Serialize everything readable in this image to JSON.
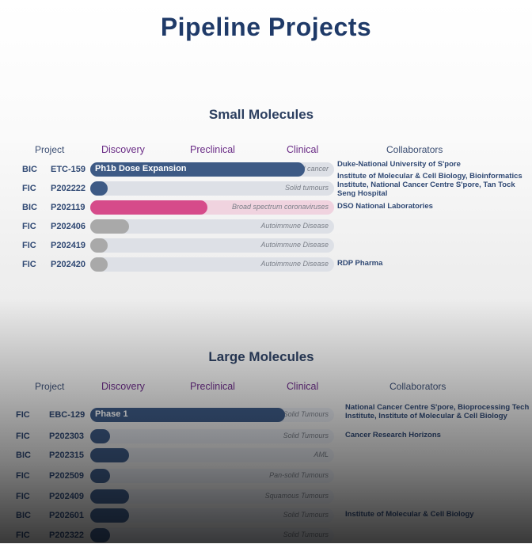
{
  "title": "Pipeline Projects",
  "colors": {
    "navy": "#3d5a85",
    "pink": "#d64b8a",
    "pink_track": "#f0d3df",
    "grey": "#a9a9a9",
    "track": "#dde0e6"
  },
  "sections": [
    {
      "title": "Small Molecules",
      "headers": {
        "project": "Project",
        "discovery": "Discovery",
        "preclinical": "Preclinical",
        "clinical": "Clinical",
        "collaborators": "Collaborators"
      },
      "rows": [
        {
          "type": "BIC",
          "code": "ETC-159",
          "phase": "Ph1b Dose Expansion",
          "indication": "Colorectal, Ovarian, Endometrial cancer",
          "progress": 0.88,
          "color": "navy",
          "collaborators": "Duke-National University of S'pore"
        },
        {
          "type": "FIC",
          "code": "P202222",
          "phase": "",
          "indication": "Solid tumours",
          "progress": 0.07,
          "color": "navy",
          "collaborators": "Institute of Molecular & Cell Biology, Bioinformatics Institute, National Cancer Centre S'pore, Tan Tock Seng Hospital"
        },
        {
          "type": "BIC",
          "code": "P202119",
          "phase": "",
          "indication": "Broad spectrum coronaviruses",
          "progress": 0.48,
          "color": "pink",
          "collaborators": "DSO National Laboratories"
        },
        {
          "type": "FIC",
          "code": "P202406",
          "phase": "",
          "indication": "Autoimmune Disease",
          "progress": 0.16,
          "color": "grey",
          "collaborators": ""
        },
        {
          "type": "FIC",
          "code": "P202419",
          "phase": "",
          "indication": "Autoimmune Disease",
          "progress": 0.07,
          "color": "grey",
          "collaborators": ""
        },
        {
          "type": "FIC",
          "code": "P202420",
          "phase": "",
          "indication": "Autoimmune Disease",
          "progress": 0.07,
          "color": "grey",
          "collaborators": "RDP Pharma"
        }
      ]
    },
    {
      "title": "Large Molecules",
      "headers": {
        "project": "Project",
        "discovery": "Discovery",
        "preclinical": "Preclinical",
        "clinical": "Clinical",
        "collaborators": "Collaborators"
      },
      "rows": [
        {
          "type": "FIC",
          "code": "EBC-129",
          "phase": "Phase 1",
          "indication": "Pan-Solid Tumours",
          "progress": 0.8,
          "color": "navy",
          "collaborators": "National Cancer Centre S'pore, Bioprocessing Tech Institute, Institute of Molecular & Cell Biology"
        },
        {
          "type": "FIC",
          "code": "P202303",
          "phase": "",
          "indication": "Solid Tumours",
          "progress": 0.08,
          "color": "navy",
          "collaborators": "Cancer Research Horizons"
        },
        {
          "type": "BIC",
          "code": "P202315",
          "phase": "",
          "indication": "AML",
          "progress": 0.16,
          "color": "navy",
          "collaborators": ""
        },
        {
          "type": "FIC",
          "code": "P202509",
          "phase": "",
          "indication": "Pan-solid Tumours",
          "progress": 0.08,
          "color": "navy",
          "collaborators": ""
        },
        {
          "type": "FIC",
          "code": "P202409",
          "phase": "",
          "indication": "Squamous Tumours",
          "progress": 0.16,
          "color": "navy",
          "collaborators": ""
        },
        {
          "type": "BIC",
          "code": "P202601",
          "phase": "",
          "indication": "Solid Tumours",
          "progress": 0.16,
          "color": "navy",
          "collaborators": "Institute of Molecular & Cell Biology"
        },
        {
          "type": "FIC",
          "code": "P202322",
          "phase": "",
          "indication": "Solid Tumours",
          "progress": 0.08,
          "color": "navy",
          "collaborators": ""
        }
      ]
    }
  ]
}
